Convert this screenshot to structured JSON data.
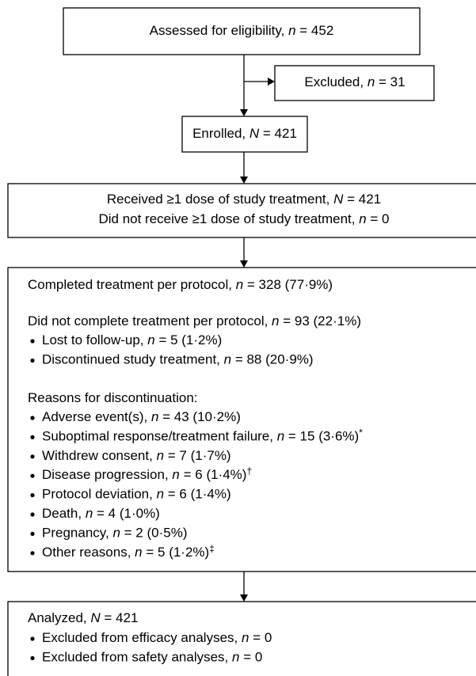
{
  "assessed": "Assessed for eligibility, n = 452",
  "excluded": "Excluded, n = 31",
  "enrolled": "Enrolled, N = 421",
  "received": [
    "Received ≥1 dose of study treatment, N = 421",
    "Did not receive ≥1 dose of study treatment, n = 0"
  ],
  "treatment": {
    "completed": "Completed treatment per protocol, n = 328 (77·9%)",
    "not_completed": "Did not complete treatment per protocol, n = 93 (22·1%)",
    "not_completed_items": [
      "Lost to follow-up, n = 5 (1·2%)",
      "Discontinued study treatment, n = 88 (20·9%)"
    ],
    "reasons_header": "Reasons for discontinuation:",
    "reasons": [
      "Adverse event(s), n = 43 (10·2%)",
      "Suboptimal response/treatment failure, n = 15 (3·6%)*",
      "Withdrew consent, n = 7 (1·7%)",
      "Disease progression, n = 6 (1·4%)†",
      "Protocol deviation, n = 6 (1·4%)",
      "Death, n = 4 (1·0%)",
      "Pregnancy, n = 2 (0·5%)",
      "Other reasons, n = 5 (1·2%)‡"
    ]
  },
  "analyzed": {
    "title": "Analyzed, N = 421",
    "items": [
      "Excluded from efficacy analyses, n = 0",
      "Excluded from safety analyses, n = 0"
    ]
  }
}
